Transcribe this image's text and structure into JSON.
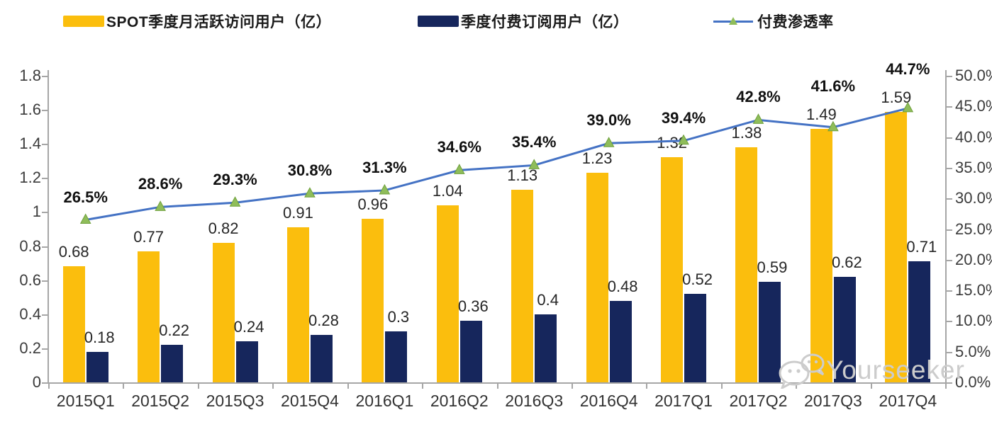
{
  "legend": {
    "items": [
      {
        "label": "SPOT季度月活跃访问用户（亿）",
        "swatch": "bar",
        "color": "#FBBE0D"
      },
      {
        "label": "季度付费订阅用户（亿）",
        "swatch": "bar",
        "color": "#16265C"
      },
      {
        "label": "付费渗透率",
        "swatch": "line",
        "line_color": "#4472C4",
        "marker_color": "#8FBD5A"
      }
    ]
  },
  "chart_data": {
    "type": "bar+line combo",
    "title": "",
    "categories": [
      "2015Q1",
      "2015Q2",
      "2015Q3",
      "2015Q4",
      "2016Q1",
      "2016Q2",
      "2016Q3",
      "2016Q4",
      "2017Q1",
      "2017Q2",
      "2017Q3",
      "2017Q4"
    ],
    "series": [
      {
        "name": "SPOT季度月活跃访问用户（亿）",
        "type": "bar",
        "axis": "left",
        "color": "#FBBE0D",
        "values": [
          0.68,
          0.77,
          0.82,
          0.91,
          0.96,
          1.04,
          1.13,
          1.23,
          1.32,
          1.38,
          1.49,
          1.59
        ],
        "labels": [
          "0.68",
          "0.77",
          "0.82",
          "0.91",
          "0.96",
          "1.04",
          "1.13",
          "1.23",
          "1.32",
          "1.38",
          "1.49",
          "1.59"
        ]
      },
      {
        "name": "季度付费订阅用户（亿）",
        "type": "bar",
        "axis": "left",
        "color": "#16265C",
        "values": [
          0.18,
          0.22,
          0.24,
          0.28,
          0.3,
          0.36,
          0.4,
          0.48,
          0.52,
          0.59,
          0.62,
          0.71
        ],
        "labels": [
          "0.18",
          "0.22",
          "0.24",
          "0.28",
          "0.3",
          "0.36",
          "0.4",
          "0.48",
          "0.52",
          "0.59",
          "0.62",
          "0.71"
        ]
      },
      {
        "name": "付费渗透率",
        "type": "line",
        "axis": "right",
        "color": "#4472C4",
        "marker": "triangle",
        "marker_color": "#8FBD5A",
        "marker_edge_color": "#6FA03C",
        "values": [
          26.5,
          28.6,
          29.3,
          30.8,
          31.3,
          34.6,
          35.4,
          39.0,
          39.4,
          42.8,
          41.6,
          44.7
        ],
        "labels": [
          "26.5%",
          "28.6%",
          "29.3%",
          "30.8%",
          "31.3%",
          "34.6%",
          "35.4%",
          "39.0%",
          "39.4%",
          "42.8%",
          "41.6%",
          "44.7%"
        ]
      }
    ],
    "left_axis": {
      "min": 0,
      "max": 1.8,
      "ticks": [
        "0",
        "0.2",
        "0.4",
        "0.6",
        "0.8",
        "1",
        "1.2",
        "1.4",
        "1.6",
        "1.8"
      ]
    },
    "right_axis": {
      "min": 0,
      "max": 50,
      "ticks": [
        "0.0%",
        "5.0%",
        "10.0%",
        "15.0%",
        "20.0%",
        "25.0%",
        "30.0%",
        "35.0%",
        "40.0%",
        "45.0%",
        "50.0%"
      ]
    },
    "grid": false,
    "legend_position": "top"
  },
  "watermark": {
    "text": "Yourseeker",
    "icon": "wechat-icon"
  }
}
